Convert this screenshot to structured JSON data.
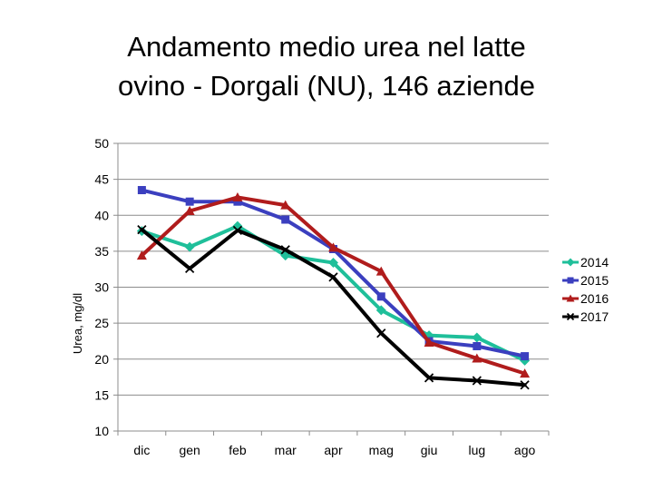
{
  "chart_data": {
    "type": "line",
    "title_lines": [
      "Andamento medio urea nel latte",
      "ovino - Dorgali (NU), 146 aziende"
    ],
    "xlabel": "",
    "ylabel": "Urea, mg/dl",
    "ylim": [
      10,
      50
    ],
    "yticks": [
      10,
      15,
      20,
      25,
      30,
      35,
      40,
      45,
      50
    ],
    "grid": true,
    "legend_position": "right",
    "categories": [
      "dic",
      "gen",
      "feb",
      "mar",
      "apr",
      "mag",
      "giu",
      "lug",
      "ago"
    ],
    "series": [
      {
        "name": "2014",
        "color": "#1fbf9a",
        "marker": "diamond",
        "values": [
          37.8,
          35.6,
          38.5,
          34.4,
          33.4,
          26.8,
          23.3,
          23.0,
          19.8
        ]
      },
      {
        "name": "2015",
        "color": "#3b3fbf",
        "marker": "square",
        "values": [
          43.5,
          41.9,
          41.9,
          39.4,
          35.3,
          28.7,
          22.5,
          21.8,
          20.4
        ]
      },
      {
        "name": "2016",
        "color": "#b01c1c",
        "marker": "triangle",
        "values": [
          34.4,
          40.6,
          42.5,
          41.4,
          35.5,
          32.2,
          22.3,
          20.1,
          18.0
        ]
      },
      {
        "name": "2017",
        "color": "#000000",
        "marker": "x",
        "values": [
          38.0,
          32.6,
          37.9,
          35.2,
          31.4,
          23.6,
          17.4,
          17.0,
          16.4
        ]
      }
    ]
  }
}
